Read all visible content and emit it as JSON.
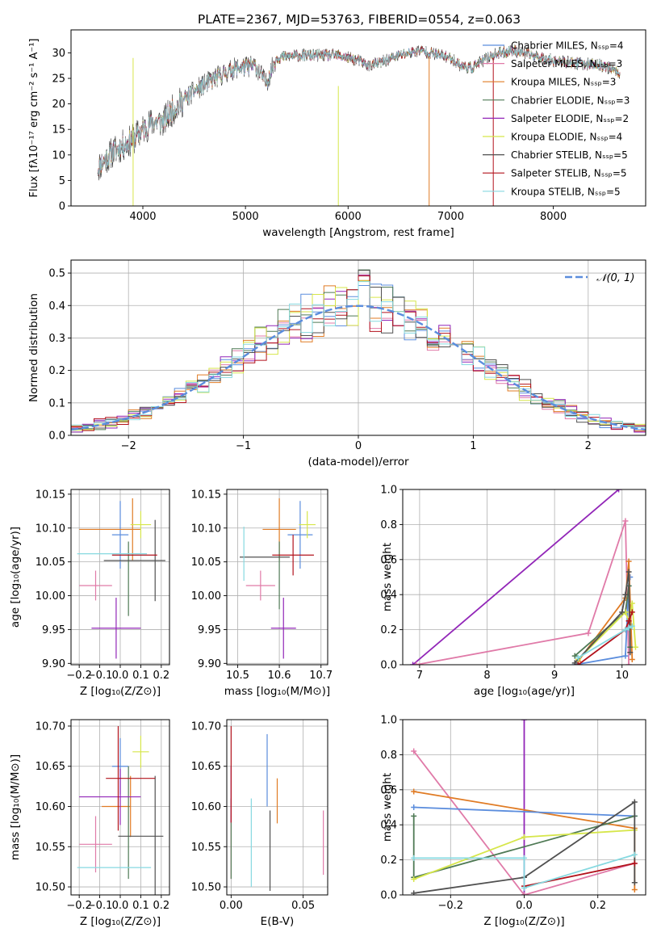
{
  "figure_title": "PLATE=2367, MJD=53763, FIBERID=0554, z=0.063",
  "colors": {
    "chabrier_miles": "#5b8ddd",
    "salpeter_miles": "#e07aa8",
    "kroupa_miles": "#e07b24",
    "chabrier_elodie": "#4f7a55",
    "salpeter_elodie": "#9226b8",
    "kroupa_elodie": "#d6e64a",
    "chabrier_stelib": "#505050",
    "salpeter_stelib": "#b2121c",
    "kroupa_stelib": "#86d9e0",
    "data_line": "#333333",
    "gauss": "#5b8ddd",
    "grid": "#b0b0b0"
  },
  "chart_data": [
    {
      "id": "spectrum",
      "type": "line",
      "title": "PLATE=2367, MJD=53763, FIBERID=0554, z=0.063",
      "xlabel": "wavelength [Angstrom, rest frame]",
      "ylabel": "Flux [fλ10⁻¹⁷ erg cm⁻² s⁻¹ A⁻¹]",
      "xlim": [
        3300,
        8900
      ],
      "ylim": [
        0,
        34.5
      ],
      "xticks": [
        4000,
        5000,
        6000,
        7000,
        8000
      ],
      "yticks": [
        0,
        5,
        10,
        15,
        20,
        25,
        30
      ],
      "grid": false,
      "legend_position": "right",
      "legend": [
        {
          "label": "Chabrier MILES, Nₛₛₚ=4",
          "color_key": "chabrier_miles"
        },
        {
          "label": "Salpeter MILES, Nₛₛₚ=3",
          "color_key": "salpeter_miles"
        },
        {
          "label": "Kroupa MILES, Nₛₛₚ=3",
          "color_key": "kroupa_miles"
        },
        {
          "label": "Chabrier ELODIE, Nₛₛₚ=3",
          "color_key": "chabrier_elodie"
        },
        {
          "label": "Salpeter ELODIE, Nₛₛₚ=2",
          "color_key": "salpeter_elodie"
        },
        {
          "label": "Kroupa ELODIE, Nₛₛₚ=4",
          "color_key": "kroupa_elodie"
        },
        {
          "label": "Chabrier STELIB, Nₛₛₚ=5",
          "color_key": "chabrier_stelib"
        },
        {
          "label": "Salpeter STELIB, Nₛₛₚ=5",
          "color_key": "salpeter_stelib"
        },
        {
          "label": "Kroupa STELIB, Nₛₛₚ=5",
          "color_key": "kroupa_stelib"
        }
      ],
      "continuum": {
        "x": [
          3560,
          3700,
          3900,
          4000,
          4100,
          4200,
          4300,
          4500,
          4700,
          4900,
          5100,
          5200,
          5300,
          5500,
          5700,
          5900,
          6000,
          6100,
          6200,
          6300,
          6500,
          6700,
          6900,
          7000,
          7100,
          7200,
          7400,
          7600,
          7800,
          8000,
          8200,
          8500,
          8650
        ],
        "y": [
          7.5,
          10.5,
          13.0,
          15.0,
          16.5,
          16.5,
          19.0,
          22.5,
          25.0,
          27.0,
          27.5,
          24.0,
          29.0,
          29.5,
          29.5,
          29.5,
          29.0,
          28.5,
          27.5,
          28.0,
          29.5,
          30.5,
          29.5,
          29.0,
          27.5,
          27.0,
          29.5,
          30.5,
          29.5,
          28.5,
          28.0,
          27.5,
          26.0
        ]
      },
      "data_end_x": 8650
    },
    {
      "id": "residuals",
      "type": "histogram",
      "xlabel": "(data-model)/error",
      "ylabel": "Normed distribution",
      "xlim": [
        -2.5,
        2.5
      ],
      "ylim": [
        0,
        0.54
      ],
      "xticks": [
        -2,
        -1,
        0,
        1,
        2
      ],
      "yticks": [
        0.0,
        0.1,
        0.2,
        0.3,
        0.4,
        0.5
      ],
      "grid": true,
      "legend_position": "top-right",
      "legend": [
        {
          "label": "𝒩(0, 1)",
          "color_key": "gauss"
        }
      ],
      "bin_width": 0.1,
      "reference_curve": "gaussian mean 0, sigma 1"
    },
    {
      "id": "age_vs_Z",
      "type": "scatter",
      "xlabel": "Z [log₁₀(Z/Z⊙)]",
      "ylabel": "age  [log₁₀(age/yr)]",
      "xlim": [
        -0.24,
        0.24
      ],
      "ylim": [
        9.898,
        10.157
      ],
      "xticks": [
        -0.2,
        -0.1,
        0.0,
        0.1,
        0.2
      ],
      "yticks": [
        9.9,
        9.95,
        10.0,
        10.05,
        10.1,
        10.15
      ],
      "grid": true,
      "points": [
        {
          "color_key": "chabrier_miles",
          "x": 0.0,
          "xerr": 0.04,
          "y": 10.09,
          "yerr": 0.05
        },
        {
          "color_key": "salpeter_miles",
          "x": -0.12,
          "xerr": 0.08,
          "y": 10.015,
          "yerr": 0.022
        },
        {
          "color_key": "kroupa_miles",
          "x": -0.05,
          "xerr": 0.15,
          "y": 10.098,
          "yerr": 0.0
        },
        {
          "color_key": "kroupa_miles",
          "x": 0.06,
          "xerr": 0.0,
          "y": 10.098,
          "yerr": 0.046
        },
        {
          "color_key": "chabrier_elodie",
          "x": 0.04,
          "xerr": 0.0,
          "y": 10.025,
          "yerr": 0.055
        },
        {
          "color_key": "salpeter_elodie",
          "x": -0.02,
          "xerr": 0.12,
          "y": 9.952,
          "yerr": 0.045
        },
        {
          "color_key": "kroupa_elodie",
          "x": 0.1,
          "xerr": 0.05,
          "y": 10.105,
          "yerr": 0.02
        },
        {
          "color_key": "chabrier_stelib",
          "x": 0.07,
          "xerr": 0.15,
          "y": 10.052,
          "yerr": 0.0
        },
        {
          "color_key": "chabrier_stelib",
          "x": 0.17,
          "xerr": 0.0,
          "y": 10.052,
          "yerr": 0.06
        },
        {
          "color_key": "salpeter_stelib",
          "x": 0.07,
          "xerr": 0.11,
          "y": 10.06,
          "yerr": 0.0
        },
        {
          "color_key": "kroupa_stelib",
          "x": -0.04,
          "xerr": 0.17,
          "y": 10.062,
          "yerr": 0.0
        }
      ]
    },
    {
      "id": "age_vs_mass",
      "type": "scatter",
      "xlabel": "mass [log₁₀(M/M⊙)]",
      "ylabel": "",
      "xlim": [
        10.474,
        10.716
      ],
      "ylim": [
        9.898,
        10.157
      ],
      "xticks": [
        10.5,
        10.6,
        10.7
      ],
      "yticks": [
        9.9,
        9.95,
        10.0,
        10.05,
        10.1,
        10.15
      ],
      "grid": true,
      "points": [
        {
          "color_key": "chabrier_miles",
          "x": 10.65,
          "xerr": 0.03,
          "y": 10.09,
          "yerr": 0.05
        },
        {
          "color_key": "salpeter_miles",
          "x": 10.555,
          "xerr": 0.035,
          "y": 10.015,
          "yerr": 0.022
        },
        {
          "color_key": "kroupa_miles",
          "x": 10.6,
          "xerr": 0.04,
          "y": 10.098,
          "yerr": 0.046
        },
        {
          "color_key": "chabrier_elodie",
          "x": 10.6,
          "xerr": 0.0,
          "y": 10.03,
          "yerr": 0.05
        },
        {
          "color_key": "salpeter_elodie",
          "x": 10.61,
          "xerr": 0.03,
          "y": 9.952,
          "yerr": 0.045
        },
        {
          "color_key": "kroupa_elodie",
          "x": 10.667,
          "xerr": 0.02,
          "y": 10.105,
          "yerr": 0.02
        },
        {
          "color_key": "chabrier_stelib",
          "x": 10.565,
          "xerr": 0.06,
          "y": 10.057,
          "yerr": 0.0
        },
        {
          "color_key": "salpeter_stelib",
          "x": 10.633,
          "xerr": 0.05,
          "y": 10.06,
          "yerr": 0.03
        },
        {
          "color_key": "kroupa_stelib",
          "x": 10.515,
          "xerr": 0.0,
          "y": 10.062,
          "yerr": 0.04
        }
      ]
    },
    {
      "id": "weight_vs_age",
      "type": "line",
      "xlabel": "age  [log₁₀(age/yr)]",
      "ylabel": "mass weight",
      "xlim": [
        6.75,
        10.35
      ],
      "ylim": [
        0.0,
        1.0
      ],
      "xticks": [
        7,
        8,
        9,
        10
      ],
      "yticks": [
        0.0,
        0.2,
        0.4,
        0.6,
        0.8,
        1.0
      ],
      "grid": true,
      "series": [
        {
          "color_key": "salpeter_elodie",
          "x": [
            6.9,
            9.95
          ],
          "y": [
            0.0,
            1.0
          ]
        },
        {
          "color_key": "salpeter_miles",
          "x": [
            6.95,
            9.5,
            10.05,
            10.1
          ],
          "y": [
            0.0,
            0.18,
            0.82,
            0.0
          ]
        },
        {
          "color_key": "chabrier_miles",
          "x": [
            9.3,
            10.05,
            10.1,
            10.12
          ],
          "y": [
            0.0,
            0.05,
            0.45,
            0.5
          ]
        },
        {
          "color_key": "kroupa_miles",
          "x": [
            9.35,
            10.05,
            10.1,
            10.15
          ],
          "y": [
            0.02,
            0.38,
            0.59,
            0.03
          ]
        },
        {
          "color_key": "chabrier_elodie",
          "x": [
            9.3,
            10.05,
            10.1,
            10.12
          ],
          "y": [
            0.05,
            0.3,
            0.45,
            0.1
          ]
        },
        {
          "color_key": "kroupa_elodie",
          "x": [
            9.35,
            10.05,
            10.1,
            10.15,
            10.2
          ],
          "y": [
            0.03,
            0.3,
            0.25,
            0.35,
            0.1
          ]
        },
        {
          "color_key": "chabrier_stelib",
          "x": [
            9.3,
            10.0,
            10.05,
            10.1,
            10.12
          ],
          "y": [
            0.01,
            0.3,
            0.4,
            0.53,
            0.07
          ]
        },
        {
          "color_key": "salpeter_stelib",
          "x": [
            9.35,
            10.05,
            10.1,
            10.15
          ],
          "y": [
            0.0,
            0.2,
            0.25,
            0.3
          ]
        },
        {
          "color_key": "kroupa_stelib",
          "x": [
            9.35,
            10.05,
            10.1,
            10.15
          ],
          "y": [
            0.04,
            0.2,
            0.21,
            0.22
          ]
        }
      ]
    },
    {
      "id": "mass_vs_Z",
      "type": "scatter",
      "xlabel": "Z [log₁₀(Z/Z⊙)]",
      "ylabel": "mass [log₁₀(M/M⊙)]",
      "xlim": [
        -0.24,
        0.24
      ],
      "ylim": [
        10.49,
        10.708
      ],
      "xticks": [
        -0.2,
        -0.1,
        0.0,
        0.1,
        0.2
      ],
      "yticks": [
        10.5,
        10.55,
        10.6,
        10.65,
        10.7
      ],
      "grid": true,
      "points": [
        {
          "color_key": "chabrier_miles",
          "x": 0.0,
          "xerr": 0.04,
          "y": 10.65,
          "yerr": 0.035
        },
        {
          "color_key": "salpeter_miles",
          "x": -0.12,
          "xerr": 0.08,
          "y": 10.553,
          "yerr": 0.035
        },
        {
          "color_key": "kroupa_miles",
          "x": -0.02,
          "xerr": 0.07,
          "y": 10.6,
          "yerr": 0.0
        },
        {
          "color_key": "kroupa_miles",
          "x": 0.05,
          "xerr": 0.0,
          "y": 10.6,
          "yerr": 0.038
        },
        {
          "color_key": "chabrier_elodie",
          "x": 0.04,
          "xerr": 0.0,
          "y": 10.58,
          "yerr": 0.07
        },
        {
          "color_key": "salpeter_elodie",
          "x": -0.05,
          "xerr": 0.15,
          "y": 10.612,
          "yerr": 0.0
        },
        {
          "color_key": "salpeter_elodie",
          "x": 0.0,
          "xerr": 0.0,
          "y": 10.612,
          "yerr": 0.035
        },
        {
          "color_key": "kroupa_elodie",
          "x": 0.1,
          "xerr": 0.04,
          "y": 10.668,
          "yerr": 0.02
        },
        {
          "color_key": "chabrier_stelib",
          "x": 0.1,
          "xerr": 0.11,
          "y": 10.563,
          "yerr": 0.0
        },
        {
          "color_key": "chabrier_stelib",
          "x": 0.17,
          "xerr": 0.0,
          "y": 10.563,
          "yerr": 0.075
        },
        {
          "color_key": "salpeter_stelib",
          "x": 0.05,
          "xerr": 0.12,
          "y": 10.635,
          "yerr": 0.0
        },
        {
          "color_key": "salpeter_stelib",
          "x": -0.01,
          "xerr": 0.0,
          "y": 10.635,
          "yerr": 0.065
        },
        {
          "color_key": "kroupa_stelib",
          "x": -0.03,
          "xerr": 0.18,
          "y": 10.524,
          "yerr": 0.0
        }
      ]
    },
    {
      "id": "mass_vs_ebv",
      "type": "scatter",
      "xlabel": "E(B-V)",
      "ylabel": "",
      "xlim": [
        -0.003,
        0.067
      ],
      "ylim": [
        10.49,
        10.708
      ],
      "xticks": [
        0.0,
        0.05
      ],
      "yticks": [
        10.5,
        10.55,
        10.6,
        10.65,
        10.7
      ],
      "grid": true,
      "points": [
        {
          "color_key": "chabrier_miles",
          "x": 0.025,
          "xerr": 0.0,
          "y": 10.645,
          "yerr": 0.045
        },
        {
          "color_key": "salpeter_miles",
          "x": 0.0,
          "xerr": 0.0,
          "y": 10.55,
          "yerr": 0.04
        },
        {
          "color_key": "salpeter_miles",
          "x": 0.064,
          "xerr": 0.0,
          "y": 10.555,
          "yerr": 0.04
        },
        {
          "color_key": "kroupa_miles",
          "x": 0.032,
          "xerr": 0.0,
          "y": 10.607,
          "yerr": 0.028
        },
        {
          "color_key": "chabrier_elodie",
          "x": 0.0,
          "xerr": 0.0,
          "y": 10.56,
          "yerr": 0.05
        },
        {
          "color_key": "salpeter_elodie",
          "x": 0.0,
          "xerr": 0.0,
          "y": 10.615,
          "yerr": 0.035
        },
        {
          "color_key": "salpeter_stelib",
          "x": 0.0,
          "xerr": 0.0,
          "y": 10.64,
          "yerr": 0.06
        },
        {
          "color_key": "chabrier_stelib",
          "x": 0.027,
          "xerr": 0.0,
          "y": 10.545,
          "yerr": 0.05
        },
        {
          "color_key": "kroupa_stelib",
          "x": 0.014,
          "xerr": 0.0,
          "y": 10.555,
          "yerr": 0.055
        }
      ]
    },
    {
      "id": "weight_vs_Z",
      "type": "line",
      "xlabel": "Z [log₁₀(Z/Z⊙)]",
      "ylabel": "mass weight",
      "xlim": [
        -0.33,
        0.33
      ],
      "ylim": [
        0.0,
        1.0
      ],
      "xticks": [
        -0.2,
        0.0,
        0.2
      ],
      "yticks": [
        0.0,
        0.2,
        0.4,
        0.6,
        0.8,
        1.0
      ],
      "grid": true,
      "series": [
        {
          "color_key": "salpeter_elodie",
          "x": [
            0.0,
            0.0
          ],
          "y": [
            0.0,
            1.0
          ]
        },
        {
          "color_key": "salpeter_miles",
          "x": [
            -0.3,
            0.0,
            0.3
          ],
          "y": [
            0.82,
            0.0,
            0.18
          ]
        },
        {
          "color_key": "kroupa_miles",
          "x": [
            -0.3,
            0.3,
            0.3
          ],
          "y": [
            0.59,
            0.38,
            0.03
          ]
        },
        {
          "color_key": "chabrier_miles",
          "x": [
            -0.3,
            0.3
          ],
          "y": [
            0.5,
            0.45
          ]
        },
        {
          "color_key": "chabrier_elodie",
          "x": [
            -0.3,
            -0.3,
            0.3
          ],
          "y": [
            0.45,
            0.1,
            0.45
          ]
        },
        {
          "color_key": "kroupa_elodie",
          "x": [
            -0.3,
            0.0,
            0.3
          ],
          "y": [
            0.09,
            0.33,
            0.37
          ]
        },
        {
          "color_key": "chabrier_stelib",
          "x": [
            -0.3,
            0.0,
            0.3,
            0.3
          ],
          "y": [
            0.01,
            0.1,
            0.53,
            0.07
          ]
        },
        {
          "color_key": "salpeter_stelib",
          "x": [
            0.0,
            0.3
          ],
          "y": [
            0.05,
            0.18
          ]
        },
        {
          "color_key": "kroupa_stelib",
          "x": [
            -0.3,
            0.0,
            0.0,
            0.3
          ],
          "y": [
            0.21,
            0.21,
            0.04,
            0.23
          ]
        }
      ]
    }
  ]
}
